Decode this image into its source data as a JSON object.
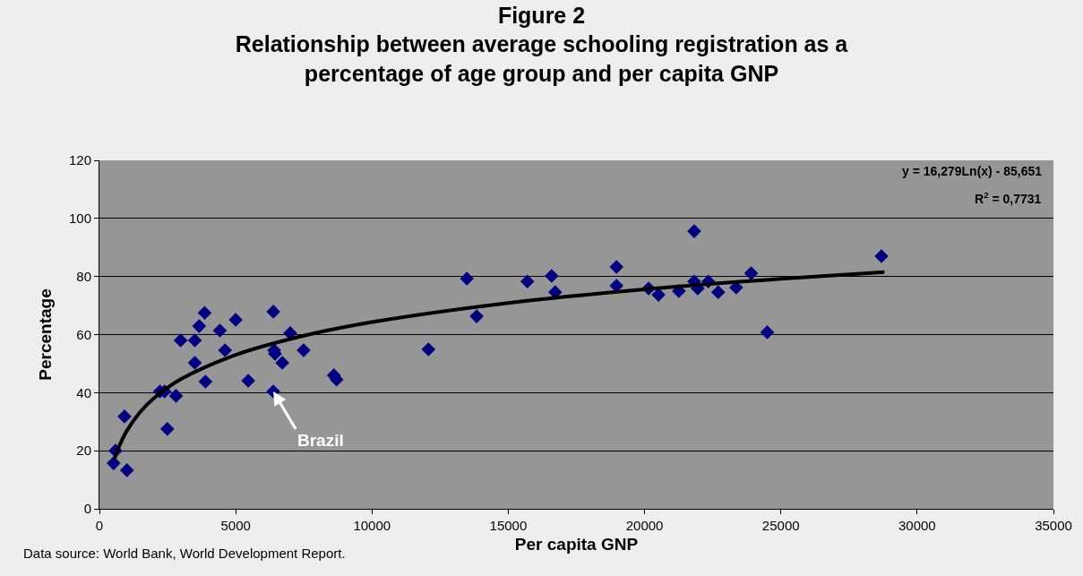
{
  "chart_data": {
    "type": "scatter",
    "title": "Figure 2\nRelationship between average schooling registration as a\npercentage of age group and per capita GNP",
    "xlabel": "Per capita GNP",
    "ylabel": "Percentage",
    "xlim": [
      0,
      35000
    ],
    "xticks": [
      0,
      5000,
      10000,
      15000,
      20000,
      25000,
      30000,
      35000
    ],
    "ylim": [
      0,
      120
    ],
    "yticks": [
      0,
      20,
      40,
      60,
      80,
      100,
      120
    ],
    "grid": "y",
    "series": [
      {
        "color": "#000080",
        "marker": "diamond",
        "x": [
          520,
          590,
          1010,
          920,
          2220,
          2390,
          2490,
          2810,
          2980,
          3500,
          3500,
          3660,
          3860,
          3890,
          4420,
          4610,
          5000,
          5460,
          6380,
          6380,
          6410,
          6440,
          6710,
          7000,
          7490,
          8600,
          8700,
          12070,
          13480,
          13840,
          15700,
          16590,
          16720,
          18970,
          18970,
          20150,
          20510,
          21260,
          21820,
          21820,
          21950,
          22340,
          22700,
          23360,
          23910,
          24500,
          28690
        ],
        "values": [
          15.7,
          20,
          13.3,
          31.8,
          40.4,
          40.4,
          27.5,
          38.9,
          58,
          58,
          50.3,
          62.9,
          67.5,
          43.8,
          61.4,
          54.6,
          65.1,
          44.1,
          40.4,
          67.9,
          54.6,
          53.4,
          50.3,
          60.5,
          54.6,
          46,
          44.5,
          54.9,
          79.3,
          66.3,
          78.3,
          80.2,
          74.6,
          83.3,
          76.8,
          75.9,
          73.7,
          75,
          95.6,
          78.3,
          75.9,
          78.3,
          74.6,
          76.2,
          81.1,
          60.8,
          87
        ]
      },
      {
        "type": "line",
        "color": "#000000",
        "marker": "none",
        "line_style": "solid",
        "x": [
          550,
          700,
          1000,
          1500,
          2000,
          3000,
          5000,
          7500,
          10000,
          15000,
          20000,
          25000,
          28800
        ],
        "values": [
          17.1,
          21,
          26.8,
          33.4,
          38.1,
          44.7,
          53,
          59.6,
          64.3,
          70.9,
          75.6,
          79.2,
          81.5
        ]
      }
    ],
    "annotations": [
      {
        "text": "Brazil",
        "x": 6380,
        "y": 40.4
      },
      "y = 16,279Ln(x) - 85,651",
      "R$^{2}$ = 0,7731",
      "Data source: World Bank, World Development Report."
    ]
  }
}
